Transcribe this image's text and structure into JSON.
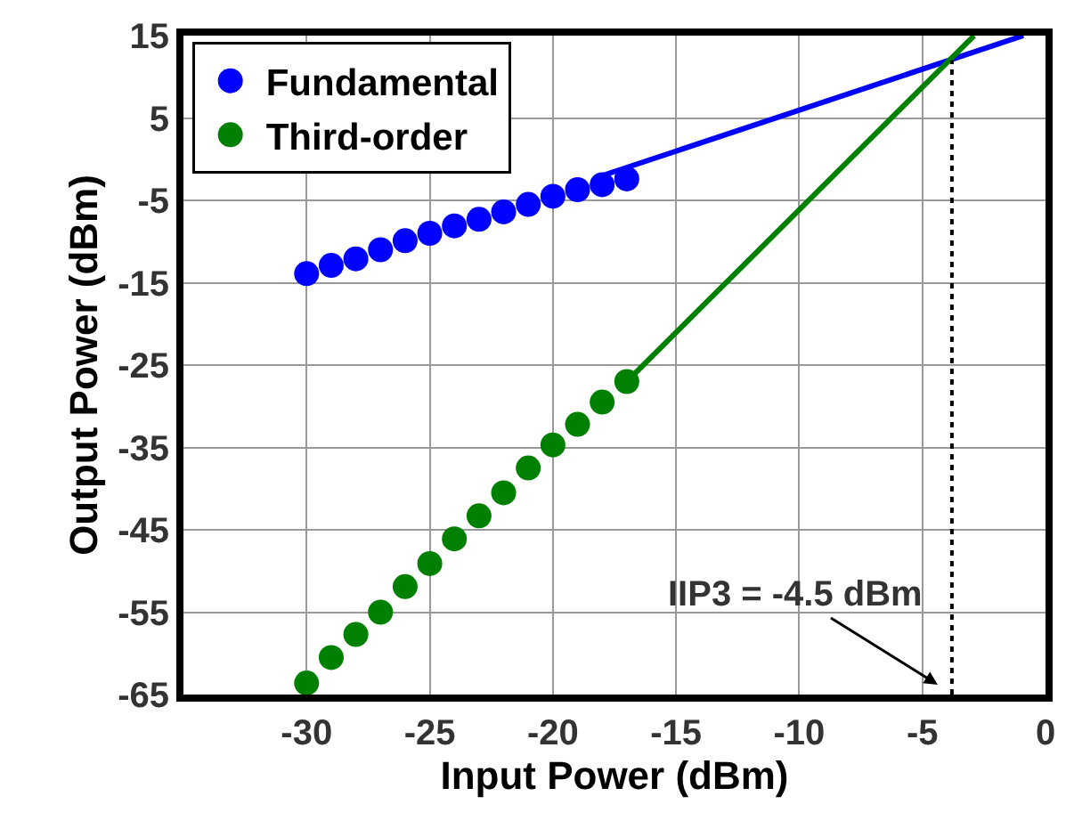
{
  "chart_data": {
    "type": "scatter",
    "xlabel": "Input Power (dBm)",
    "ylabel": "Output Power (dBm)",
    "series": [
      {
        "name": "Fundamental",
        "color": "#0000ff",
        "marker": "circle",
        "x": [
          -30,
          -29,
          -28,
          -27,
          -26,
          -25,
          -24,
          -23,
          -22,
          -21,
          -20,
          -19,
          -18,
          -17
        ],
        "values": [
          -13.9,
          -12.9,
          -12.1,
          -11.0,
          -9.9,
          -9.0,
          -8.1,
          -7.3,
          -6.4,
          -5.5,
          -4.5,
          -3.7,
          -3.1,
          -2.4
        ]
      },
      {
        "name": "Third-order",
        "color": "#008000",
        "marker": "circle",
        "x": [
          -30,
          -29,
          -28,
          -27,
          -26,
          -25,
          -24,
          -23,
          -22,
          -21,
          -20,
          -19,
          -18,
          -17
        ],
        "values": [
          -63.6,
          -60.5,
          -57.7,
          -55.0,
          -51.9,
          -49.1,
          -46.1,
          -43.3,
          -40.5,
          -37.5,
          -34.7,
          -32.2,
          -29.5,
          -27.0
        ]
      },
      {
        "color": "#0000ff",
        "type": "line",
        "marker": "none",
        "x": [
          -18,
          -0.9
        ],
        "values": [
          -2.0,
          15
        ]
      },
      {
        "color": "#008000",
        "type": "line",
        "marker": "none",
        "x": [
          -17,
          -2.9
        ],
        "values": [
          -27,
          15
        ]
      },
      {
        "color": "#000000",
        "type": "line",
        "marker": "none",
        "line_style": "dotted",
        "x": [
          -3.8,
          -3.8
        ],
        "values": [
          -65,
          12
        ]
      }
    ],
    "annotations": [
      "IIP3 = -4.5 dBm"
    ],
    "xlim": [
      -35,
      0
    ],
    "xticks": [
      -30,
      -25,
      -20,
      -15,
      -10,
      -5,
      0
    ],
    "ylim": [
      -65,
      15
    ],
    "yticks": [
      -65,
      -55,
      -45,
      -35,
      -25,
      -15,
      -5,
      5,
      15
    ],
    "grid": true,
    "legend": "top left"
  }
}
